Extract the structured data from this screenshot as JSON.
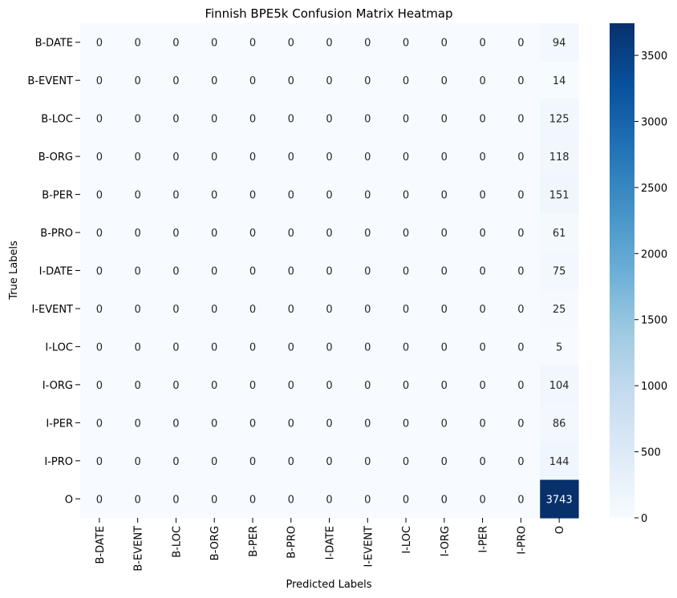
{
  "chart_data": {
    "type": "heatmap",
    "title": "Finnish BPE5k Confusion Matrix Heatmap",
    "xlabel": "Predicted Labels",
    "ylabel": "True Labels",
    "x_categories": [
      "B-DATE",
      "B-EVENT",
      "B-LOC",
      "B-ORG",
      "B-PER",
      "B-PRO",
      "I-DATE",
      "I-EVENT",
      "I-LOC",
      "I-ORG",
      "I-PER",
      "I-PRO",
      "O"
    ],
    "y_categories": [
      "B-DATE",
      "B-EVENT",
      "B-LOC",
      "B-ORG",
      "B-PER",
      "B-PRO",
      "I-DATE",
      "I-EVENT",
      "I-LOC",
      "I-ORG",
      "I-PER",
      "I-PRO",
      "O"
    ],
    "values": [
      [
        0,
        0,
        0,
        0,
        0,
        0,
        0,
        0,
        0,
        0,
        0,
        0,
        94
      ],
      [
        0,
        0,
        0,
        0,
        0,
        0,
        0,
        0,
        0,
        0,
        0,
        0,
        14
      ],
      [
        0,
        0,
        0,
        0,
        0,
        0,
        0,
        0,
        0,
        0,
        0,
        0,
        125
      ],
      [
        0,
        0,
        0,
        0,
        0,
        0,
        0,
        0,
        0,
        0,
        0,
        0,
        118
      ],
      [
        0,
        0,
        0,
        0,
        0,
        0,
        0,
        0,
        0,
        0,
        0,
        0,
        151
      ],
      [
        0,
        0,
        0,
        0,
        0,
        0,
        0,
        0,
        0,
        0,
        0,
        0,
        61
      ],
      [
        0,
        0,
        0,
        0,
        0,
        0,
        0,
        0,
        0,
        0,
        0,
        0,
        75
      ],
      [
        0,
        0,
        0,
        0,
        0,
        0,
        0,
        0,
        0,
        0,
        0,
        0,
        25
      ],
      [
        0,
        0,
        0,
        0,
        0,
        0,
        0,
        0,
        0,
        0,
        0,
        0,
        5
      ],
      [
        0,
        0,
        0,
        0,
        0,
        0,
        0,
        0,
        0,
        0,
        0,
        0,
        104
      ],
      [
        0,
        0,
        0,
        0,
        0,
        0,
        0,
        0,
        0,
        0,
        0,
        0,
        86
      ],
      [
        0,
        0,
        0,
        0,
        0,
        0,
        0,
        0,
        0,
        0,
        0,
        0,
        144
      ],
      [
        0,
        0,
        0,
        0,
        0,
        0,
        0,
        0,
        0,
        0,
        0,
        0,
        3743
      ]
    ],
    "colormap": "Blues",
    "colorbar": {
      "range": [
        0,
        3743
      ],
      "ticks": [
        "0",
        "500",
        "1000",
        "1500",
        "2000",
        "2500",
        "3000",
        "3500"
      ]
    }
  }
}
